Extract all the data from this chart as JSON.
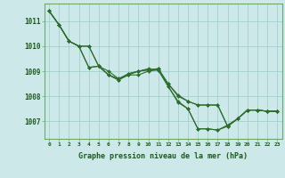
{
  "title": "Graphe pression niveau de la mer (hPa)",
  "bg_color": "#cce8e8",
  "grid_color": "#99cccc",
  "line_color": "#2d6e2d",
  "spine_color": "#6aaa6a",
  "xlim": [
    -0.5,
    23.5
  ],
  "ylim": [
    1006.3,
    1011.7
  ],
  "yticks": [
    1007,
    1008,
    1009,
    1010,
    1011
  ],
  "xticks": [
    0,
    1,
    2,
    3,
    4,
    5,
    6,
    7,
    8,
    9,
    10,
    11,
    12,
    13,
    14,
    15,
    16,
    17,
    18,
    19,
    20,
    21,
    22,
    23
  ],
  "series": [
    [
      1011.4,
      1010.85,
      1010.2,
      1010.0,
      1010.0,
      1009.2,
      1008.85,
      1008.65,
      1008.9,
      1009.0,
      1009.05,
      1009.1,
      1008.5,
      1008.0,
      1007.8,
      1007.65,
      1007.65,
      1007.65,
      1006.8,
      1007.1,
      1007.45,
      1007.45,
      1007.4,
      1007.4
    ],
    [
      1011.4,
      1010.85,
      1010.2,
      1010.0,
      1009.15,
      1009.2,
      1008.85,
      1008.65,
      1008.85,
      1009.0,
      1009.1,
      1009.05,
      1008.4,
      1007.75,
      1007.5,
      1006.7,
      1006.7,
      1006.65,
      1006.8,
      1007.1,
      1007.45,
      1007.45,
      1007.4,
      1007.4
    ],
    [
      1011.4,
      1010.85,
      1010.2,
      1010.0,
      1010.0,
      1009.2,
      1008.85,
      1008.7,
      1008.9,
      1009.0,
      1009.05,
      1009.1,
      1008.5,
      1008.05,
      1007.8,
      1007.65,
      1007.65,
      1007.65,
      1006.8,
      1007.1,
      1007.45,
      1007.45,
      1007.4,
      1007.4
    ],
    [
      1011.4,
      1010.85,
      1010.2,
      1010.0,
      1009.15,
      1009.2,
      1009.0,
      1008.7,
      1008.85,
      1008.85,
      1009.0,
      1009.05,
      1008.4,
      1007.8,
      1007.5,
      1006.7,
      1006.7,
      1006.65,
      1006.85,
      1007.1,
      1007.45,
      1007.45,
      1007.4,
      1007.4
    ]
  ]
}
